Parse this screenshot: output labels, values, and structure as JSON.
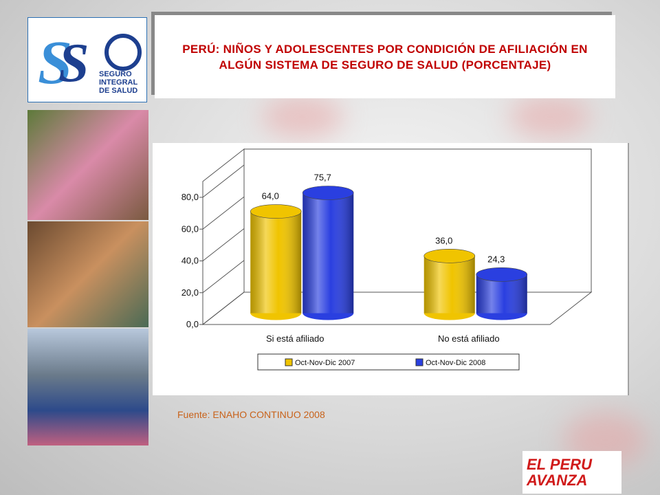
{
  "logo_top": {
    "text": "SEGURO INTEGRAL DE SALUD"
  },
  "logo_bottom": {
    "text": "EL PERU AVANZA"
  },
  "chart_data": {
    "type": "bar3d",
    "title": "PERÚ: NIÑOS Y ADOLESCENTES POR CONDICIÓN DE AFILIACIÓN EN ALGÚN SISTEMA DE SEGURO DE SALUD (PORCENTAJE)",
    "source": "Fuente: ENAHO CONTINUO 2008",
    "categories": [
      "Si está afiliado",
      "No está afiliado"
    ],
    "series": [
      {
        "name": "Oct-Nov-Dic 2007",
        "color": "#f0c400",
        "values": [
          64.0,
          36.0
        ],
        "value_labels": [
          "64,0",
          "36,0"
        ]
      },
      {
        "name": "Oct-Nov-Dic 2008",
        "color": "#2a3fe0",
        "values": [
          75.7,
          24.3
        ],
        "value_labels": [
          "75,7",
          "24,3"
        ]
      }
    ],
    "ylim": [
      0,
      90
    ],
    "yticks": [
      {
        "value": 0,
        "label": "0,0"
      },
      {
        "value": 20,
        "label": "20,0"
      },
      {
        "value": 40,
        "label": "40,0"
      },
      {
        "value": 60,
        "label": "60,0"
      },
      {
        "value": 80,
        "label": "80,0"
      }
    ],
    "legend": "bottom"
  }
}
